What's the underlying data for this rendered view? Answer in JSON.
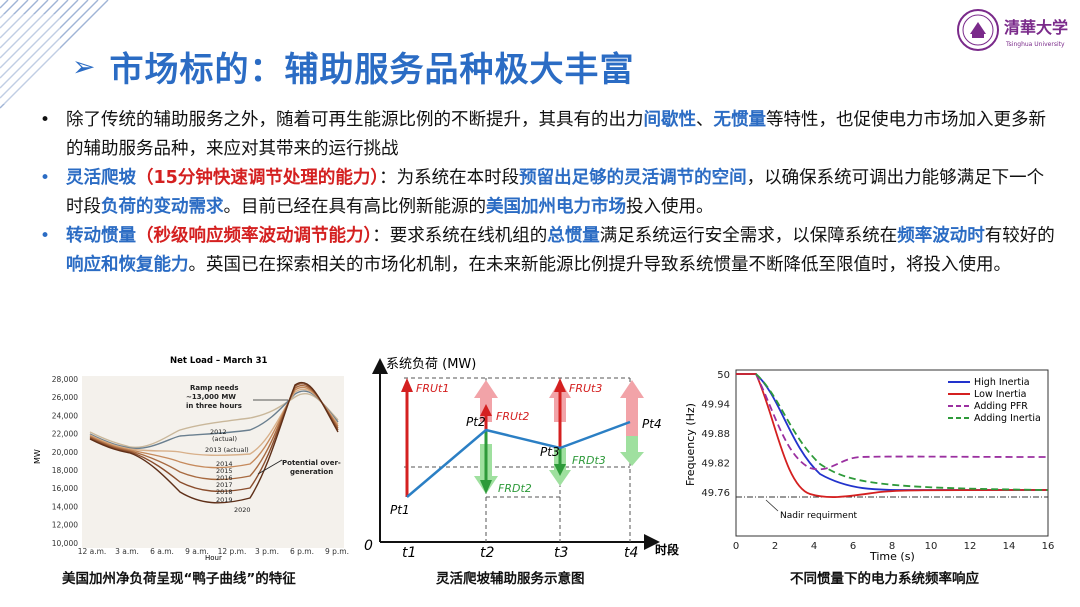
{
  "title": "市场标的：辅助服务品种极大丰富",
  "title_marker": "➢",
  "logo": {
    "text": "清華大学",
    "sub": "Tsinghua University"
  },
  "bullets": [
    {
      "marker": "•",
      "parts": [
        {
          "t": "除了传统的辅助服务之外，随着可再生能源比例的不断提升，其具有的出力"
        },
        {
          "t": "间歇性",
          "c": "hl"
        },
        {
          "t": "、"
        },
        {
          "t": "无惯量",
          "c": "hl"
        },
        {
          "t": "等特性，也促使电力市场加入更多新的辅助服务品种，来应对其带来的运行挑战"
        }
      ]
    },
    {
      "marker": "•",
      "blue": true,
      "parts": [
        {
          "t": "灵活爬坡",
          "c": "hl"
        },
        {
          "t": "（15分钟快速调节处理的能力）",
          "c": "red"
        },
        {
          "t": "：为系统在本时段"
        },
        {
          "t": "预留出足够的灵活调节的空间",
          "c": "hl"
        },
        {
          "t": "，以确保系统可调出力能够满足下一个时段"
        },
        {
          "t": "负荷的变动需求",
          "c": "hl"
        },
        {
          "t": "。目前已经在具有高比例新能源的"
        },
        {
          "t": "美国加州电力市场",
          "c": "hl"
        },
        {
          "t": "投入使用。"
        }
      ]
    },
    {
      "marker": "•",
      "blue": true,
      "parts": [
        {
          "t": "转动惯量",
          "c": "hl"
        },
        {
          "t": "（秒级响应频率波动调节能力）",
          "c": "red"
        },
        {
          "t": "：要求系统在线机组的"
        },
        {
          "t": "总惯量",
          "c": "hl"
        },
        {
          "t": "满足系统运行安全需求，以保障系统在"
        },
        {
          "t": "频率波动时",
          "c": "hl"
        },
        {
          "t": "有较好的"
        },
        {
          "t": "响应和恢复能力",
          "c": "hl"
        },
        {
          "t": "。英国已在探索相关的市场化机制，在未来新能源比例提升导致系统惯量不断降低至限值时，将投入使用。"
        }
      ]
    }
  ],
  "fig1": {
    "title": "Net Load – March 31",
    "ylabel": "MW",
    "xlabel": "Hour",
    "yticks": [
      "28,000",
      "26,000",
      "24,000",
      "22,000",
      "20,000",
      "18,000",
      "16,000",
      "14,000",
      "12,000",
      "10,000"
    ],
    "xticks": [
      "12 a.m.",
      "3 a.m.",
      "6 a.m.",
      "9 a.m.",
      "12 p.m.",
      "3 p.m.",
      "6 p.m.",
      "9 p.m."
    ],
    "annotations": {
      "ramp": [
        "Ramp needs",
        "~13,000 MW",
        "in three hours"
      ],
      "over": [
        "Potential over-",
        "generation"
      ]
    },
    "years": [
      "2012",
      "(actual)",
      "2013 (actual)",
      "2014",
      "2015",
      "2016",
      "2017",
      "2018",
      "2019",
      "2020"
    ],
    "caption": "美国加州净负荷呈现“鸭子曲线”的特征"
  },
  "fig2": {
    "ylabel": "系统负荷 (MW)",
    "origin": "0",
    "xaxis": "时段",
    "ticks": [
      "t1",
      "t2",
      "t3",
      "t4"
    ],
    "points": [
      "Pt1",
      "Pt2",
      "Pt3",
      "Pt4"
    ],
    "fru": [
      "FRUt1",
      "FRUt2",
      "FRUt3"
    ],
    "frd": [
      "FRDt2",
      "FRDt3"
    ],
    "caption": "灵活爬坡辅助服务示意图"
  },
  "fig3": {
    "ylabel": "Frequency (Hz)",
    "xlabel": "Time (s)",
    "yticks": [
      "50",
      "49.94",
      "49.88",
      "49.82",
      "49.76"
    ],
    "xticks": [
      "0",
      "2",
      "4",
      "6",
      "8",
      "10",
      "12",
      "14",
      "16"
    ],
    "legend": [
      "High Inertia",
      "Low Inertia",
      "Adding PFR",
      "Adding Inertia"
    ],
    "nadir": "Nadir requirment",
    "colors": {
      "high": "#2233cc",
      "low": "#d42020",
      "pfr": "#9b30a0",
      "inertia": "#2e9a3a"
    },
    "caption": "不同惯量下的电力系统频率响应"
  },
  "colors": {
    "accent": "#2b6cc4",
    "red": "#d42020"
  }
}
